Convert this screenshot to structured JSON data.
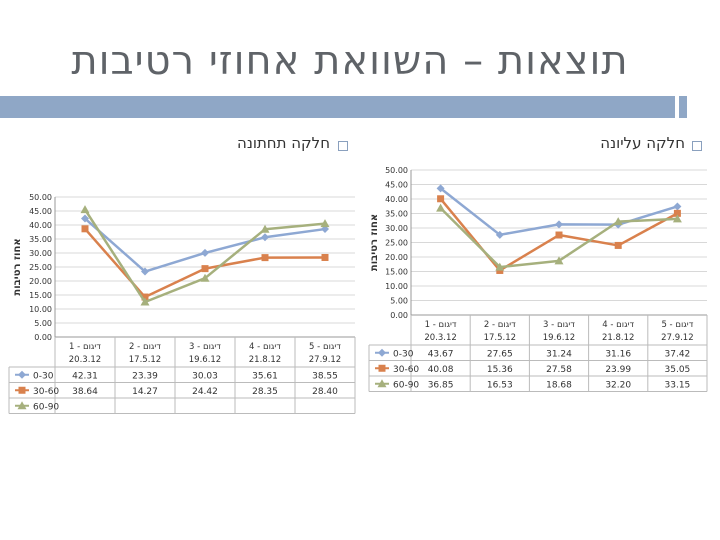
{
  "slide": {
    "title": "תוצאות – השוואת אחוזי רטיבות"
  },
  "panels": {
    "right_heading": "חלקה עליונה",
    "left_heading": "חלקה תחתונה"
  },
  "colors": {
    "s1": "#8ea8d3",
    "s2": "#d9814d",
    "s3": "#a6b07d",
    "grid": "#d8d8d8",
    "rule": "#8fa7c6"
  },
  "chart_data": [
    {
      "type": "line",
      "ylabel": "אחוז רטיבות",
      "ylim": [
        0,
        50
      ],
      "yticks": [
        "0.00",
        "5.00",
        "10.00",
        "15.00",
        "20.00",
        "25.00",
        "30.00",
        "35.00",
        "40.00",
        "45.00",
        "50.00"
      ],
      "categories": [
        [
          "דיגום - 1",
          "20.3.12"
        ],
        [
          "דיגום - 2",
          "17.5.12"
        ],
        [
          "דיגום - 3",
          "19.6.12"
        ],
        [
          "דיגום - 4",
          "21.8.12"
        ],
        [
          "דיגום - 5",
          "27.9.12"
        ]
      ],
      "series": [
        {
          "name": "0-30",
          "values": [
            43.67,
            27.65,
            31.24,
            31.16,
            37.42
          ],
          "cells": [
            "43.67",
            "27.65",
            "31.24",
            "31.16",
            "37.42"
          ]
        },
        {
          "name": "30-60",
          "values": [
            40.08,
            15.36,
            27.58,
            23.99,
            35.05
          ],
          "cells": [
            "40.08",
            "15.36",
            "27.58",
            "23.99",
            "35.05"
          ]
        },
        {
          "name": "60-90",
          "values": [
            36.85,
            16.53,
            18.68,
            32.2,
            33.15
          ],
          "cells": [
            "36.85",
            "16.53",
            "18.68",
            "32.20",
            "33.15"
          ]
        }
      ]
    },
    {
      "type": "line",
      "ylabel": "אחוז רטיבות",
      "ylim": [
        0,
        50
      ],
      "yticks": [
        "0.00",
        "5.00",
        "10.00",
        "15.00",
        "20.00",
        "25.00",
        "30.00",
        "35.00",
        "40.00",
        "45.00",
        "50.00"
      ],
      "categories": [
        [
          "דיגום - 1",
          "20.3.12"
        ],
        [
          "דיגום - 2",
          "17.5.12"
        ],
        [
          "דיגום - 3",
          "19.6.12"
        ],
        [
          "דיגום - 4",
          "21.8.12"
        ],
        [
          "דיגום - 5",
          "27.9.12"
        ]
      ],
      "series": [
        {
          "name": "0-30",
          "values": [
            42.31,
            23.39,
            30.03,
            35.61,
            38.55
          ],
          "cells": [
            "42.31",
            "23.39",
            "30.03",
            "35.61",
            "38.55"
          ]
        },
        {
          "name": "30-60",
          "values": [
            38.64,
            14.27,
            24.42,
            28.35,
            28.4
          ],
          "cells": [
            "38.64",
            "14.27",
            "24.42",
            "28.35",
            "28.40"
          ]
        },
        {
          "name": "60-90",
          "values": [
            45.5,
            12.5,
            21.0,
            38.5,
            40.5
          ]
        }
      ]
    }
  ]
}
